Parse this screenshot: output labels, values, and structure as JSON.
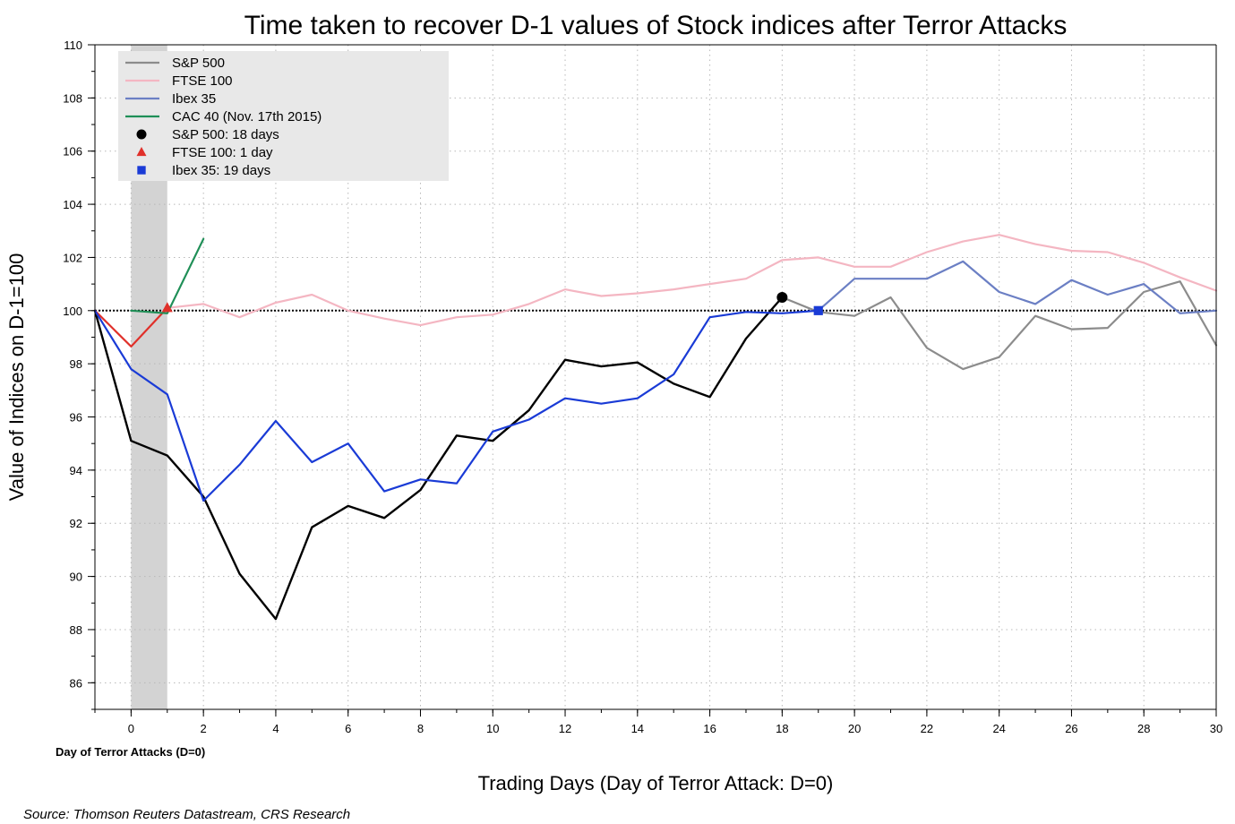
{
  "chart_data": {
    "type": "line",
    "title": "Time taken to recover D-1 values of Stock indices after Terror Attacks",
    "xlabel": "Trading Days (Day of Terror Attack: D=0)",
    "ylabel": "Value of Indices on D-1=100",
    "xlim": [
      -1,
      30
    ],
    "ylim": [
      85,
      110
    ],
    "xticks": [
      0,
      2,
      4,
      6,
      8,
      10,
      12,
      14,
      16,
      18,
      20,
      22,
      24,
      26,
      28,
      30
    ],
    "yticks": [
      86,
      88,
      90,
      92,
      94,
      96,
      98,
      100,
      102,
      104,
      106,
      108,
      110
    ],
    "grid": true,
    "legend_position": "top-left",
    "reference_line": 100,
    "attack_day_band": [
      0,
      1
    ],
    "attack_day_note": "Day of Terror Attacks (D=0)",
    "source": "Source: Thomson Reuters Datastream, CRS Research",
    "series": [
      {
        "name": "S&P 500",
        "legend_color": "#8c8c8c",
        "segments": [
          {
            "color": "#000000",
            "width": 2.4,
            "x": [
              -1,
              0,
              1,
              2,
              3,
              4,
              5,
              6,
              7,
              8,
              9,
              10,
              11,
              12,
              13,
              14,
              15,
              16,
              17,
              18
            ],
            "y": [
              100,
              95.1,
              94.55,
              93.0,
              90.1,
              88.4,
              91.85,
              92.65,
              92.2,
              93.25,
              95.3,
              95.1,
              96.25,
              98.15,
              97.9,
              98.05,
              97.25,
              96.75,
              98.95,
              100.5
            ]
          },
          {
            "color": "#8c8c8c",
            "width": 2.2,
            "x": [
              18,
              19,
              20,
              21,
              22,
              23,
              24,
              25,
              26,
              27,
              28,
              29,
              30
            ],
            "y": [
              100.5,
              99.95,
              99.8,
              100.5,
              98.6,
              97.8,
              98.25,
              99.8,
              99.3,
              99.35,
              100.7,
              101.1,
              98.7
            ]
          }
        ]
      },
      {
        "name": "FTSE 100",
        "legend_color": "#f4b6c2",
        "segments": [
          {
            "color": "#e0302a",
            "width": 2.2,
            "x": [
              -1,
              0,
              1
            ],
            "y": [
              100,
              98.65,
              100.1
            ]
          },
          {
            "color": "#f4b6c2",
            "width": 2.2,
            "x": [
              1,
              2,
              3,
              4,
              5,
              6,
              7,
              8,
              9,
              10,
              11,
              12,
              13,
              14,
              15,
              16,
              17,
              18,
              19,
              20,
              21,
              22,
              23,
              24,
              25,
              26,
              27,
              28,
              29,
              30
            ],
            "y": [
              100.1,
              100.25,
              99.75,
              100.3,
              100.6,
              100.0,
              99.7,
              99.45,
              99.75,
              99.85,
              100.25,
              100.8,
              100.55,
              100.65,
              100.8,
              101.0,
              101.2,
              101.9,
              102.0,
              101.65,
              101.65,
              102.2,
              102.6,
              102.85,
              102.5,
              102.25,
              102.2,
              101.8,
              101.25,
              100.75
            ]
          }
        ]
      },
      {
        "name": "Ibex 35",
        "legend_color": "#6b7fc4",
        "segments": [
          {
            "color": "#1a3bd6",
            "width": 2.2,
            "x": [
              -1,
              0,
              1,
              2,
              3,
              4,
              5,
              6,
              7,
              8,
              9,
              10,
              11,
              12,
              13,
              14,
              15,
              16,
              17,
              18,
              19
            ],
            "y": [
              100,
              97.8,
              96.85,
              92.85,
              94.2,
              95.85,
              94.3,
              95.0,
              93.2,
              93.65,
              93.5,
              95.45,
              95.9,
              96.7,
              96.5,
              96.7,
              97.6,
              99.75,
              99.95,
              99.9,
              100.0
            ]
          },
          {
            "color": "#6b7fc4",
            "width": 2.2,
            "x": [
              19,
              20,
              21,
              22,
              23,
              24,
              25,
              26,
              27,
              28,
              29,
              30
            ],
            "y": [
              100.0,
              101.2,
              101.2,
              101.2,
              101.85,
              100.7,
              100.25,
              101.15,
              100.6,
              101.0,
              99.9,
              100.0
            ]
          }
        ]
      },
      {
        "name": "CAC 40 (Nov. 17th 2015)",
        "legend_color": "#1f8f57",
        "segments": [
          {
            "color": "#1f8f57",
            "width": 2.2,
            "x": [
              0,
              1,
              2
            ],
            "y": [
              100.0,
              99.9,
              102.7
            ]
          }
        ]
      }
    ],
    "markers": [
      {
        "name": "S&P 500: 18 days",
        "shape": "circle",
        "color": "#000000",
        "x": 18,
        "y": 100.5
      },
      {
        "name": "FTSE 100: 1 day",
        "shape": "triangle",
        "color": "#e0302a",
        "x": 1,
        "y": 100.1
      },
      {
        "name": "Ibex 35: 19 days",
        "shape": "square",
        "color": "#1a3bd6",
        "x": 19,
        "y": 100.0
      }
    ]
  }
}
